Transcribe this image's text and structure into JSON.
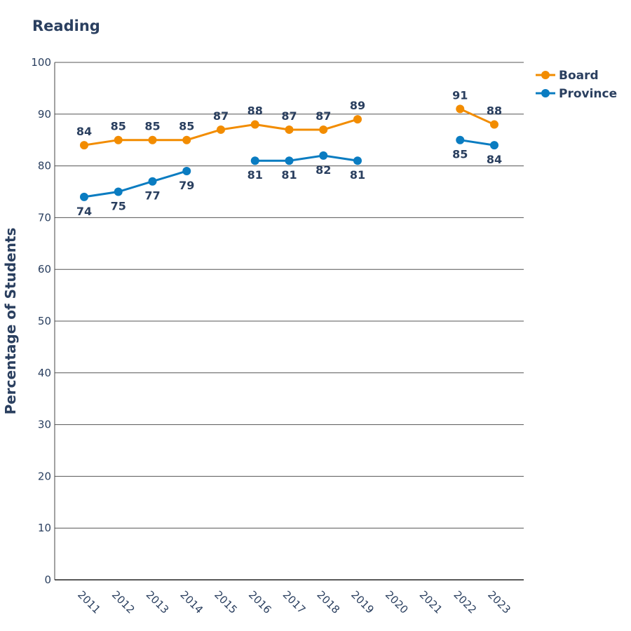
{
  "chart_data": {
    "type": "line",
    "title": "Reading",
    "xlabel": "",
    "ylabel": "Percentage of Students",
    "ylim": [
      0,
      100
    ],
    "yticks": [
      0,
      10,
      20,
      30,
      40,
      50,
      60,
      70,
      80,
      90,
      100
    ],
    "categories": [
      "2011",
      "2012",
      "2013",
      "2014",
      "2015",
      "2016",
      "2017",
      "2018",
      "2019",
      "2020",
      "2021",
      "2022",
      "2023"
    ],
    "grid": true,
    "legend_position": "top-right",
    "series": [
      {
        "name": "Board",
        "color": "#F28C00",
        "label_position": "above",
        "values": [
          84,
          85,
          85,
          85,
          87,
          88,
          87,
          87,
          89,
          null,
          null,
          91,
          88
        ]
      },
      {
        "name": "Province",
        "color": "#0A7CC1",
        "label_position": "below",
        "values": [
          74,
          75,
          77,
          79,
          null,
          81,
          81,
          82,
          81,
          null,
          null,
          85,
          84
        ]
      }
    ]
  }
}
